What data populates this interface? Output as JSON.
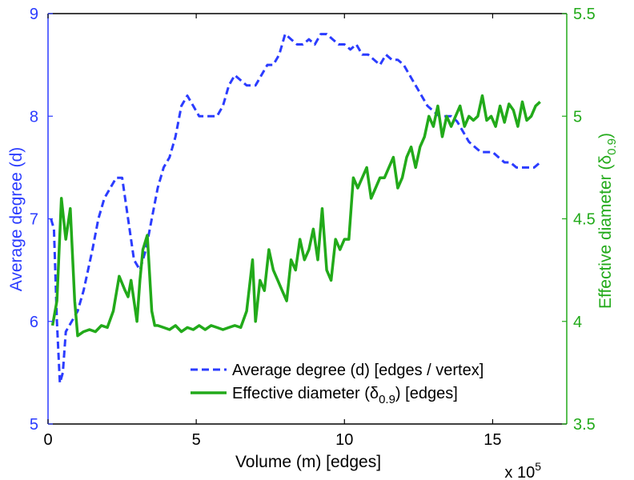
{
  "chart_data": {
    "type": "line",
    "xlabel": "Volume (m) [edges]",
    "x_multiplier": "x 10",
    "x_multiplier_exp": "5",
    "xlim": [
      0,
      17.5
    ],
    "xticks": [
      "0",
      "5",
      "10",
      "15"
    ],
    "ylabel_left": "Average degree (d)",
    "ylim_left": [
      5,
      9
    ],
    "yticks_left": [
      "5",
      "6",
      "7",
      "8",
      "9"
    ],
    "ylabel_right_main": "Effective diameter (δ",
    "ylabel_right_sub": "0.9",
    "ylabel_right_end": ")",
    "ylim_right": [
      3.5,
      5.5
    ],
    "yticks_right": [
      "3.5",
      "4",
      "4.5",
      "5",
      "5.5"
    ],
    "colors": {
      "left": "#2b3cff",
      "right": "#22aa1a"
    },
    "grid": false,
    "legend_position": "bottom-right",
    "legend": [
      {
        "text": "Average degree (d) [edges / vertex]"
      },
      {
        "text_main": "Effective diameter (δ",
        "text_sub": "0.9",
        "text_end": ") [edges]"
      }
    ],
    "series": [
      {
        "axis": "left",
        "style": "dashed",
        "x": [
          0.1,
          0.2,
          0.3,
          0.4,
          0.5,
          0.6,
          0.8,
          1.0,
          1.2,
          1.5,
          1.7,
          1.9,
          2.1,
          2.3,
          2.5,
          2.7,
          2.9,
          3.1,
          3.3,
          3.5,
          3.7,
          3.9,
          4.1,
          4.3,
          4.5,
          4.7,
          4.9,
          5.1,
          5.3,
          5.5,
          5.7,
          5.9,
          6.1,
          6.3,
          6.5,
          6.7,
          7.0,
          7.2,
          7.4,
          7.6,
          7.8,
          8.0,
          8.2,
          8.4,
          8.6,
          8.8,
          9.0,
          9.2,
          9.4,
          9.6,
          9.8,
          10.0,
          10.2,
          10.4,
          10.6,
          10.8,
          11.0,
          11.2,
          11.4,
          11.6,
          11.8,
          12.0,
          12.2,
          12.4,
          12.6,
          12.8,
          13.0,
          13.2,
          13.4,
          13.6,
          13.8,
          14.0,
          14.2,
          14.4,
          14.6,
          14.8,
          15.0,
          15.2,
          15.4,
          15.6,
          15.8,
          16.0,
          16.2,
          16.4,
          16.6
        ],
        "y": [
          7.0,
          6.9,
          6.0,
          5.4,
          5.5,
          5.9,
          6.0,
          6.1,
          6.3,
          6.7,
          7.0,
          7.2,
          7.3,
          7.4,
          7.4,
          7.0,
          6.6,
          6.5,
          6.7,
          7.0,
          7.3,
          7.5,
          7.6,
          7.8,
          8.1,
          8.2,
          8.1,
          8.0,
          8.0,
          8.0,
          8.0,
          8.1,
          8.3,
          8.4,
          8.35,
          8.3,
          8.3,
          8.4,
          8.5,
          8.5,
          8.6,
          8.8,
          8.75,
          8.7,
          8.7,
          8.75,
          8.7,
          8.8,
          8.8,
          8.75,
          8.7,
          8.7,
          8.65,
          8.7,
          8.6,
          8.6,
          8.55,
          8.5,
          8.6,
          8.55,
          8.55,
          8.5,
          8.4,
          8.3,
          8.2,
          8.1,
          8.05,
          8.0,
          8.0,
          8.0,
          7.95,
          7.85,
          7.75,
          7.7,
          7.65,
          7.65,
          7.65,
          7.6,
          7.55,
          7.55,
          7.5,
          7.5,
          7.5,
          7.5,
          7.55
        ]
      },
      {
        "axis": "right",
        "style": "solid",
        "x": [
          0.15,
          0.3,
          0.45,
          0.6,
          0.75,
          0.9,
          1.0,
          1.2,
          1.4,
          1.6,
          1.8,
          2.0,
          2.2,
          2.4,
          2.6,
          2.7,
          2.8,
          2.9,
          3.0,
          3.1,
          3.2,
          3.35,
          3.5,
          3.6,
          3.7,
          3.9,
          4.1,
          4.3,
          4.5,
          4.7,
          4.9,
          5.1,
          5.3,
          5.5,
          5.7,
          5.9,
          6.1,
          6.3,
          6.5,
          6.7,
          6.9,
          7.0,
          7.15,
          7.3,
          7.45,
          7.6,
          7.75,
          7.9,
          8.05,
          8.2,
          8.35,
          8.5,
          8.65,
          8.8,
          8.95,
          9.1,
          9.25,
          9.4,
          9.55,
          9.7,
          9.85,
          10.0,
          10.15,
          10.3,
          10.45,
          10.6,
          10.75,
          10.9,
          11.05,
          11.2,
          11.35,
          11.5,
          11.65,
          11.8,
          11.95,
          12.1,
          12.25,
          12.4,
          12.55,
          12.7,
          12.85,
          13.0,
          13.15,
          13.3,
          13.45,
          13.6,
          13.75,
          13.9,
          14.05,
          14.2,
          14.35,
          14.5,
          14.65,
          14.8,
          14.95,
          15.1,
          15.25,
          15.4,
          15.55,
          15.7,
          15.85,
          16.0,
          16.15,
          16.3,
          16.45,
          16.6
        ],
        "y": [
          3.98,
          4.1,
          4.6,
          4.4,
          4.55,
          4.1,
          3.93,
          3.95,
          3.96,
          3.95,
          3.98,
          3.97,
          4.05,
          4.22,
          4.15,
          4.12,
          4.2,
          4.1,
          4.0,
          4.2,
          4.35,
          4.42,
          4.05,
          3.98,
          3.98,
          3.97,
          3.96,
          3.98,
          3.95,
          3.97,
          3.96,
          3.98,
          3.96,
          3.98,
          3.97,
          3.96,
          3.97,
          3.98,
          3.97,
          4.05,
          4.3,
          4.0,
          4.2,
          4.15,
          4.35,
          4.25,
          4.2,
          4.15,
          4.1,
          4.3,
          4.25,
          4.4,
          4.3,
          4.35,
          4.45,
          4.3,
          4.55,
          4.25,
          4.2,
          4.4,
          4.35,
          4.4,
          4.4,
          4.7,
          4.65,
          4.7,
          4.75,
          4.6,
          4.65,
          4.7,
          4.7,
          4.75,
          4.8,
          4.65,
          4.7,
          4.8,
          4.85,
          4.75,
          4.85,
          4.9,
          5.0,
          4.95,
          5.05,
          4.9,
          5.0,
          4.95,
          5.0,
          5.05,
          4.95,
          5.0,
          4.98,
          5.0,
          5.1,
          4.98,
          5.0,
          4.95,
          5.05,
          4.97,
          5.06,
          5.03,
          4.95,
          5.07,
          4.98,
          5.0,
          5.05,
          5.07
        ]
      }
    ]
  }
}
